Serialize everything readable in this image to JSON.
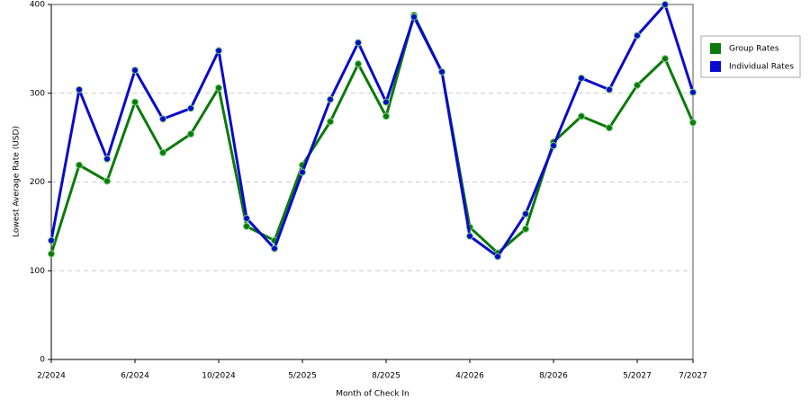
{
  "chart_data": {
    "type": "line",
    "x_label": "Month of Check In",
    "y_label": "Lowest Average Rate (USD)",
    "categories": [
      "2/2024",
      null,
      null,
      "6/2024",
      null,
      null,
      "10/2024",
      null,
      null,
      "5/2025",
      null,
      null,
      "8/2025",
      null,
      null,
      "4/2026",
      null,
      null,
      "8/2026",
      null,
      null,
      "5/2027",
      null,
      "7/2027"
    ],
    "series": [
      {
        "name": "Group Rates",
        "color": "#0b7a0b",
        "values": [
          119,
          219,
          201,
          290,
          233,
          254,
          306,
          150,
          134,
          219,
          268,
          333,
          274,
          388,
          324,
          149,
          120,
          147,
          245,
          274,
          261,
          309,
          339,
          267
        ]
      },
      {
        "name": "Individual Rates",
        "color": "#0a0acc",
        "values": [
          134,
          304,
          226,
          326,
          271,
          283,
          348,
          159,
          125,
          211,
          293,
          357,
          290,
          386,
          324,
          139,
          116,
          164,
          241,
          317,
          304,
          365,
          400,
          301
        ]
      }
    ],
    "ylim": [
      0,
      400
    ],
    "yticks": [
      0,
      100,
      200,
      300,
      400
    ],
    "grid": true,
    "legend": "top-right"
  }
}
